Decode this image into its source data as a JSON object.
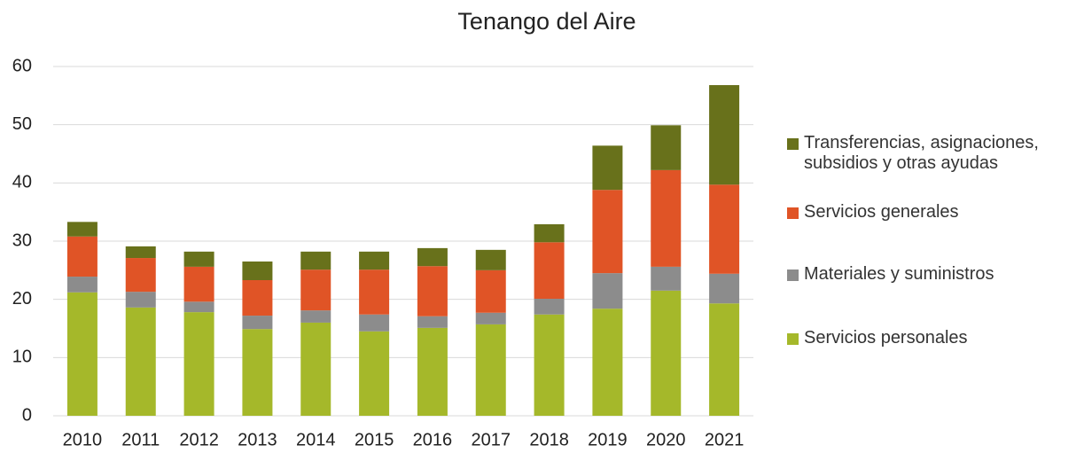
{
  "chart_data": {
    "type": "stacked_bar",
    "title": "Tenango del Aire",
    "categories": [
      "2010",
      "2011",
      "2012",
      "2013",
      "2014",
      "2015",
      "2016",
      "2017",
      "2018",
      "2019",
      "2020",
      "2021"
    ],
    "series": [
      {
        "name": "Servicios personales",
        "color": "#a5b82a",
        "values": [
          21.2,
          18.6,
          17.8,
          14.9,
          16.0,
          14.5,
          15.1,
          15.7,
          17.4,
          18.4,
          21.5,
          19.3
        ]
      },
      {
        "name": "Materiales y suministros",
        "color": "#8c8c8c",
        "values": [
          2.7,
          2.7,
          1.8,
          2.3,
          2.1,
          2.9,
          2.0,
          2.0,
          2.7,
          6.1,
          4.1,
          5.1
        ]
      },
      {
        "name": "Servicios generales",
        "color": "#e05426",
        "values": [
          6.9,
          5.8,
          6.0,
          6.1,
          7.0,
          7.7,
          8.6,
          7.3,
          9.7,
          14.3,
          16.6,
          15.3
        ]
      },
      {
        "name": "Transferencias, asignaciones, subsidios y otras ayudas",
        "color": "#68711b",
        "values": [
          2.5,
          2.0,
          2.6,
          3.2,
          3.1,
          3.1,
          3.1,
          3.5,
          3.1,
          7.6,
          7.7,
          17.1
        ]
      }
    ],
    "ylim": [
      0,
      60
    ],
    "yticks": [
      0,
      10,
      20,
      30,
      40,
      50,
      60
    ],
    "grid": true,
    "legend": "right"
  }
}
